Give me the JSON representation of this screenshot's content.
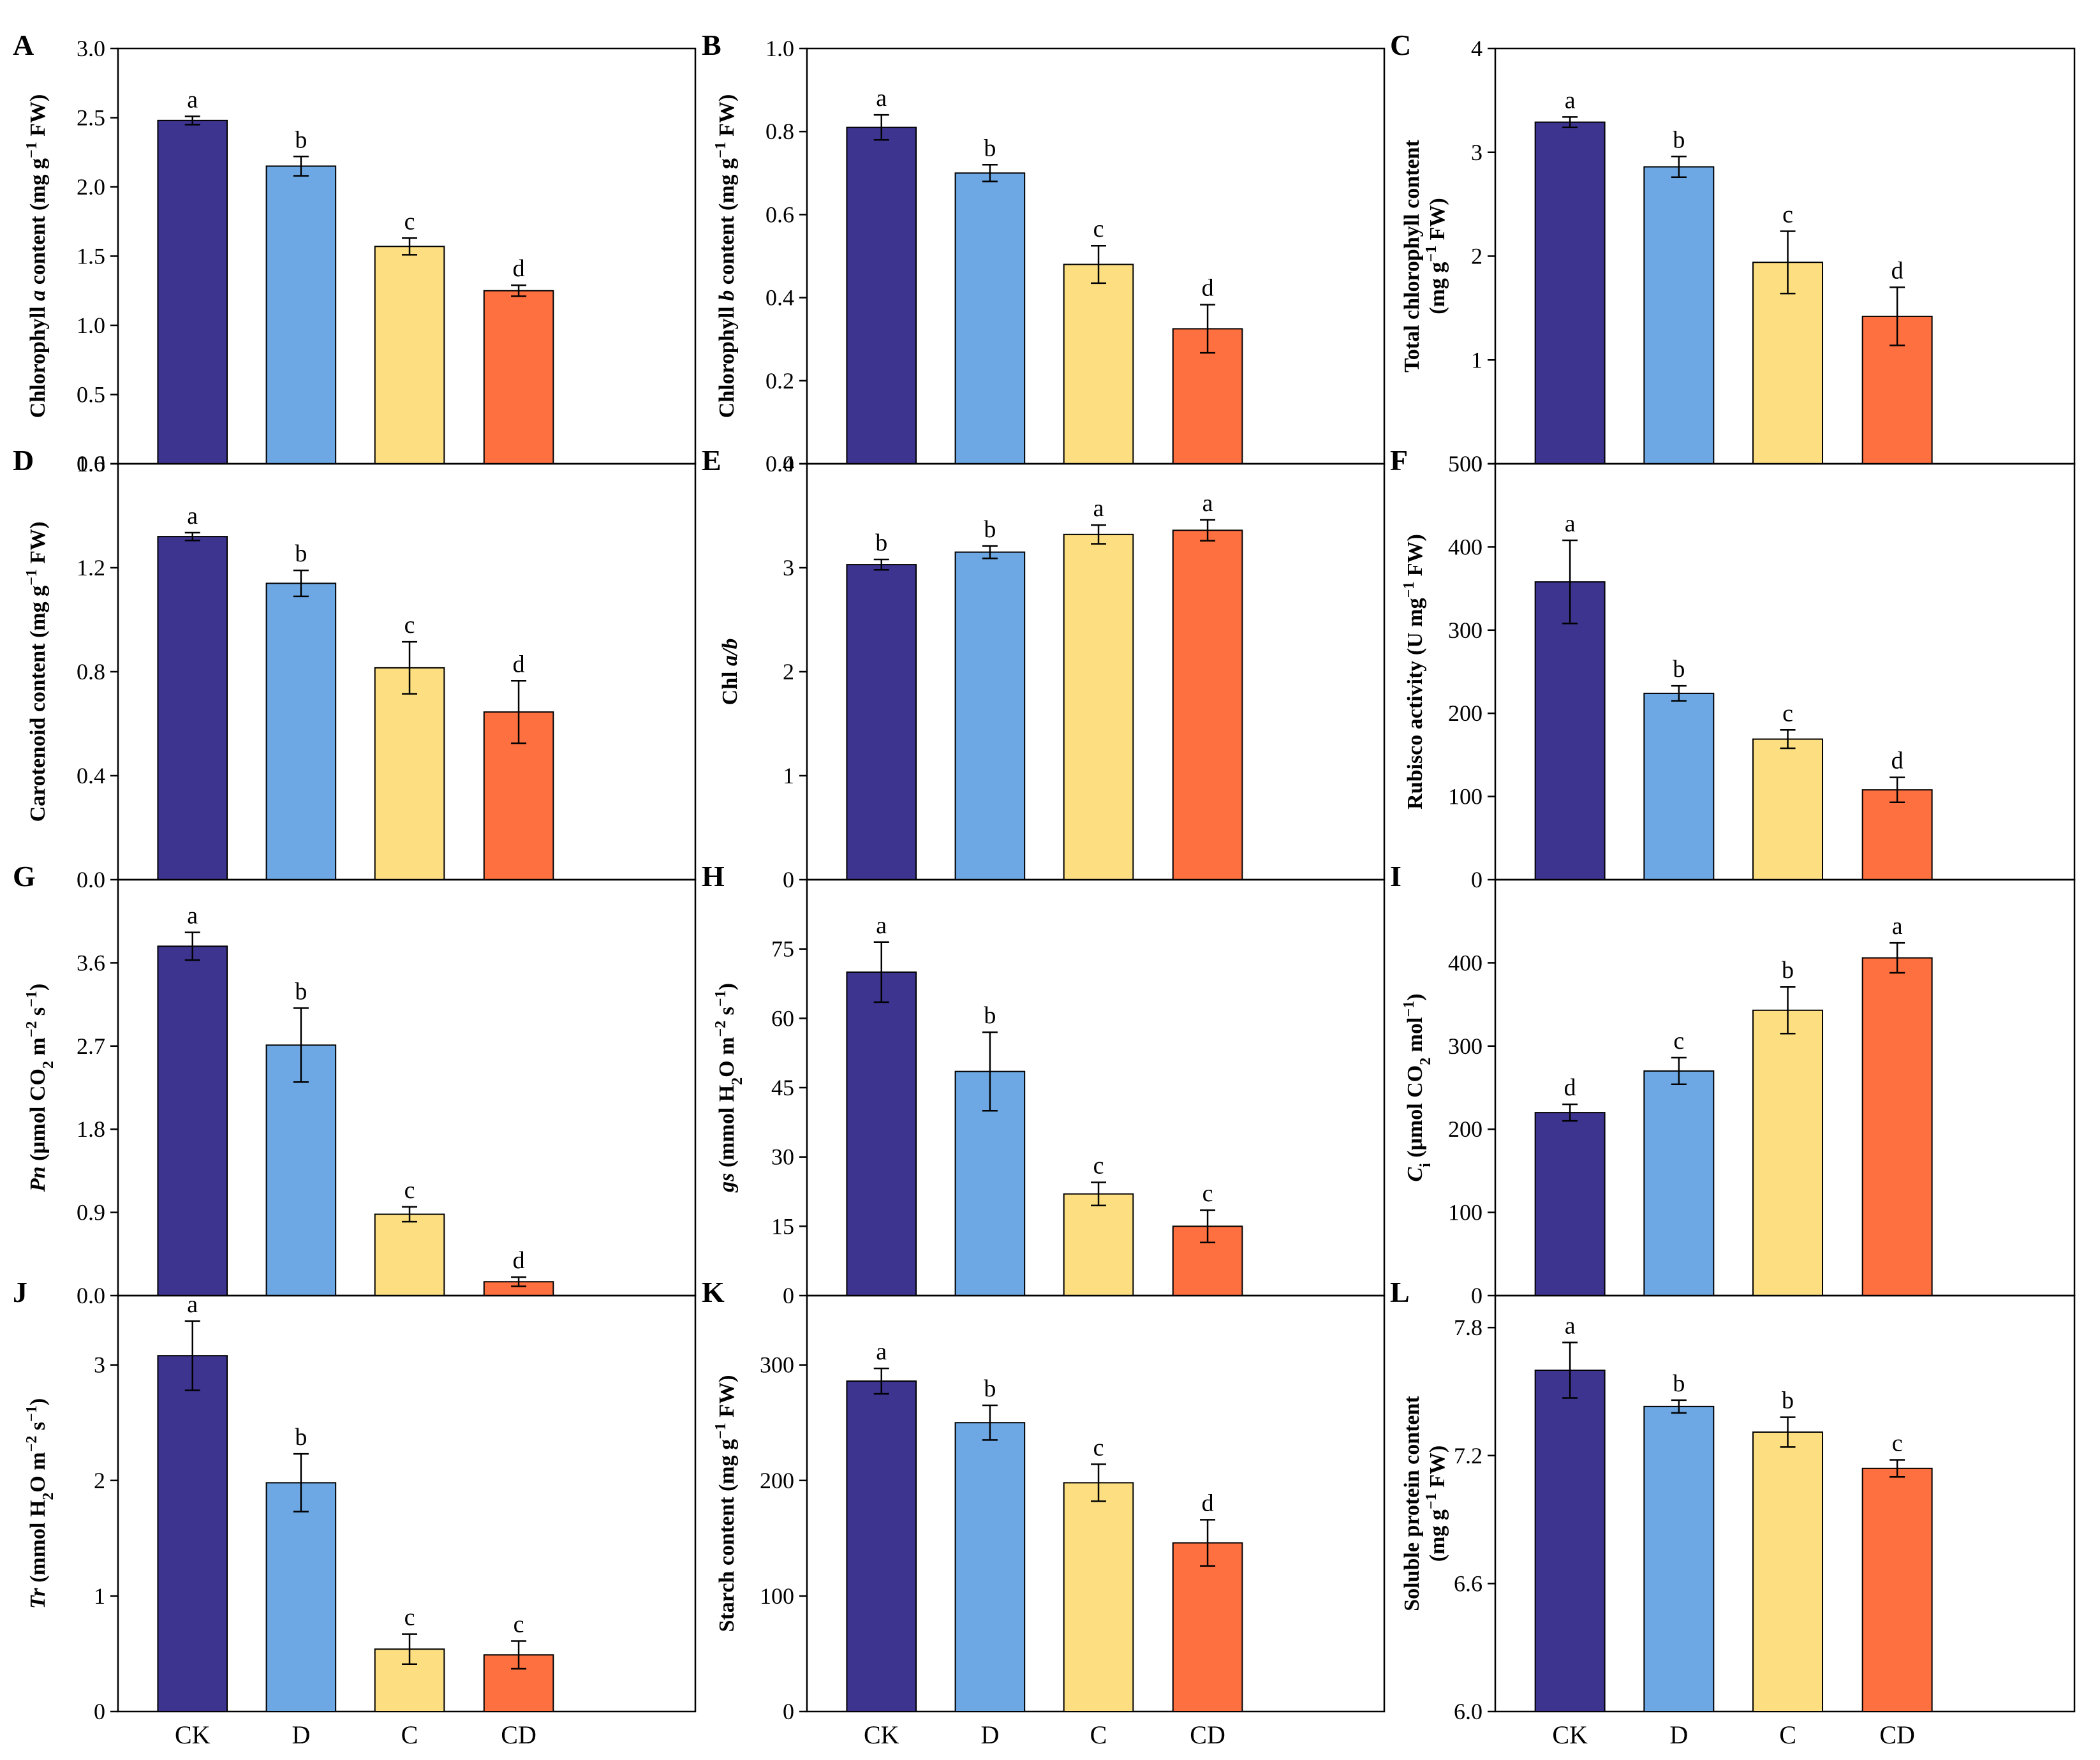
{
  "categories": [
    "CK",
    "D",
    "C",
    "CD"
  ],
  "colors": [
    "#3d3490",
    "#6da8e4",
    "#fddf82",
    "#ff7040"
  ],
  "chart_data": [
    {
      "type": "bar",
      "panel": "A",
      "ylabel": [
        "Chlorophyll ",
        "a",
        " content (mg g",
        "−1",
        " FW)"
      ],
      "ylim": [
        0,
        3.0
      ],
      "ticks": [
        "0.0",
        "0.5",
        "1.0",
        "1.5",
        "2.0",
        "2.5",
        "3.0"
      ],
      "values": [
        2.48,
        2.15,
        1.57,
        1.25
      ],
      "errors": [
        0.03,
        0.07,
        0.06,
        0.04
      ],
      "letters": [
        "a",
        "b",
        "c",
        "d"
      ]
    },
    {
      "type": "bar",
      "panel": "B",
      "ylabel": [
        "Chlorophyll ",
        "b",
        " content (mg g",
        "−1",
        " FW)"
      ],
      "ylim": [
        0,
        1.0
      ],
      "ticks": [
        "0.0",
        "0.2",
        "0.4",
        "0.6",
        "0.8",
        "1.0"
      ],
      "values": [
        0.81,
        0.7,
        0.48,
        0.325
      ],
      "errors": [
        0.03,
        0.02,
        0.045,
        0.058
      ],
      "letters": [
        "a",
        "b",
        "c",
        "d"
      ]
    },
    {
      "type": "bar",
      "panel": "C",
      "ylabel": [
        "Total chlorophyll content",
        "(mg g",
        "−1",
        " FW)"
      ],
      "ylim": [
        0,
        4
      ],
      "ticks": [
        "0",
        "1",
        "2",
        "3",
        "4"
      ],
      "values": [
        3.29,
        2.86,
        1.94,
        1.42
      ],
      "errors": [
        0.05,
        0.1,
        0.3,
        0.28
      ],
      "letters": [
        "a",
        "b",
        "c",
        "d"
      ]
    },
    {
      "type": "bar",
      "panel": "D",
      "ylabel": [
        "Carotenoid content (mg g",
        "−1",
        " FW)"
      ],
      "ylim": [
        0,
        1.6
      ],
      "ticks": [
        "0.0",
        "0.4",
        "0.8",
        "1.2",
        "1.6"
      ],
      "values": [
        1.32,
        1.14,
        0.815,
        0.645
      ],
      "errors": [
        0.015,
        0.05,
        0.1,
        0.12
      ],
      "letters": [
        "a",
        "b",
        "c",
        "d"
      ]
    },
    {
      "type": "bar",
      "panel": "E",
      "ylabel": [
        "Chl ",
        "a/b"
      ],
      "ylim": [
        0,
        4
      ],
      "ticks": [
        "0",
        "1",
        "2",
        "3",
        "4"
      ],
      "values": [
        3.03,
        3.15,
        3.32,
        3.36
      ],
      "errors": [
        0.05,
        0.06,
        0.09,
        0.1
      ],
      "letters": [
        "b",
        "b",
        "a",
        "a"
      ]
    },
    {
      "type": "bar",
      "panel": "F",
      "ylabel": [
        "Rubisco activity (U mg",
        "−1",
        " FW)"
      ],
      "ylim": [
        0,
        500
      ],
      "ticks": [
        "0",
        "100",
        "200",
        "300",
        "400",
        "500"
      ],
      "values": [
        358,
        224,
        169,
        108
      ],
      "errors": [
        50,
        9,
        11,
        15
      ],
      "letters": [
        "a",
        "b",
        "c",
        "d"
      ]
    },
    {
      "type": "bar",
      "panel": "G",
      "ylabel": [
        "Pn",
        " (μmol CO",
        "2",
        " m",
        "−2",
        " s",
        "−1",
        ")"
      ],
      "ylim": [
        0,
        4.5
      ],
      "ticks": [
        "0.0",
        "0.9",
        "1.8",
        "2.7",
        "3.6"
      ],
      "values": [
        3.78,
        2.71,
        0.88,
        0.15
      ],
      "errors": [
        0.15,
        0.4,
        0.08,
        0.05
      ],
      "letters": [
        "a",
        "b",
        "c",
        "d"
      ]
    },
    {
      "type": "bar",
      "panel": "H",
      "ylabel": [
        "gs",
        " (mmol H",
        "2",
        "O m",
        "−2",
        " s",
        "−1",
        ")"
      ],
      "ylim": [
        0,
        90
      ],
      "ticks": [
        "0",
        "15",
        "30",
        "45",
        "60",
        "75"
      ],
      "values": [
        70,
        48.5,
        22,
        15
      ],
      "errors": [
        6.5,
        8.5,
        2.5,
        3.5
      ],
      "letters": [
        "a",
        "b",
        "c",
        "c"
      ]
    },
    {
      "type": "bar",
      "panel": "I",
      "ylabel": [
        "C",
        "i",
        " (μmol CO",
        "2",
        " mol",
        "−1",
        ")"
      ],
      "ylim": [
        0,
        500
      ],
      "ticks": [
        "0",
        "100",
        "200",
        "300",
        "400"
      ],
      "values": [
        220,
        270,
        343,
        406
      ],
      "errors": [
        10,
        16,
        28,
        18
      ],
      "letters": [
        "d",
        "c",
        "b",
        "a"
      ]
    },
    {
      "type": "bar",
      "panel": "J",
      "ylabel": [
        "Tr",
        " (mmol H",
        "2",
        "O m",
        "−2",
        " s",
        "−1",
        ")"
      ],
      "ylim": [
        0,
        3.6
      ],
      "ticks": [
        "0",
        "1",
        "2",
        "3"
      ],
      "values": [
        3.08,
        1.98,
        0.54,
        0.49
      ],
      "errors": [
        0.3,
        0.25,
        0.13,
        0.12
      ],
      "letters": [
        "a",
        "b",
        "c",
        "c"
      ]
    },
    {
      "type": "bar",
      "panel": "K",
      "ylabel": [
        "Starch content (mg g",
        "−1",
        " FW)"
      ],
      "ylim": [
        0,
        360
      ],
      "ticks": [
        "0",
        "100",
        "200",
        "300"
      ],
      "values": [
        286,
        250,
        198,
        146
      ],
      "errors": [
        11,
        15,
        16,
        20
      ],
      "letters": [
        "a",
        "b",
        "c",
        "d"
      ]
    },
    {
      "type": "bar",
      "panel": "L",
      "ylabel": [
        "Soluble protein content",
        "(mg g",
        "−1",
        " FW)"
      ],
      "ylim": [
        6.0,
        7.95
      ],
      "ticks": [
        "6.0",
        "6.6",
        "7.2",
        "7.8"
      ],
      "values": [
        7.6,
        7.43,
        7.31,
        7.14
      ],
      "errors": [
        0.13,
        0.03,
        0.07,
        0.04
      ],
      "letters": [
        "a",
        "b",
        "b",
        "c"
      ]
    }
  ]
}
